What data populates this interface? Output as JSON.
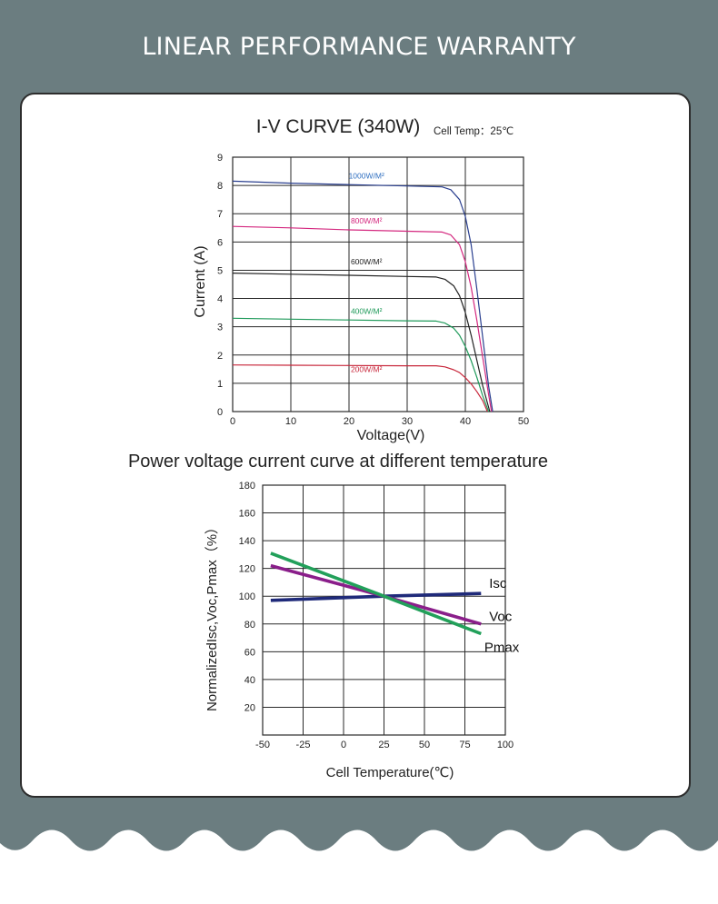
{
  "page": {
    "title": "LINEAR PERFORMANCE WARRANTY",
    "colors": {
      "band": "#6b7d80",
      "card_border": "#2d2d2d",
      "grid": "#2a2a2a"
    }
  },
  "chart_data": [
    {
      "type": "line",
      "title": "I-V CURVE (340W)",
      "subtitle": "Cell Temp：25℃",
      "xlabel": "Voltage(V)",
      "ylabel": "Current (A)",
      "xlim": [
        0,
        50
      ],
      "ylim": [
        0,
        9
      ],
      "x_ticks": [
        0,
        10,
        20,
        30,
        40,
        50
      ],
      "y_ticks": [
        0,
        1,
        2,
        3,
        4,
        5,
        6,
        7,
        8,
        9
      ],
      "grid": true,
      "series": [
        {
          "name": "1000W/M²",
          "color": "#2a3f8f",
          "label_color": "#2f6fc0",
          "label_at": [
            23,
            8.25
          ],
          "points": [
            [
              0,
              8.15
            ],
            [
              10,
              8.08
            ],
            [
              20,
              8.03
            ],
            [
              30,
              7.98
            ],
            [
              36,
              7.95
            ],
            [
              37.5,
              7.85
            ],
            [
              39,
              7.5
            ],
            [
              40,
              6.9
            ],
            [
              41,
              5.9
            ],
            [
              42,
              4.3
            ],
            [
              43,
              2.6
            ],
            [
              44,
              0.9
            ],
            [
              44.7,
              0
            ]
          ]
        },
        {
          "name": "800W/M²",
          "color": "#d4287f",
          "label_color": "#d4287f",
          "label_at": [
            23,
            6.65
          ],
          "points": [
            [
              0,
              6.55
            ],
            [
              10,
              6.5
            ],
            [
              20,
              6.43
            ],
            [
              30,
              6.38
            ],
            [
              36,
              6.35
            ],
            [
              37.5,
              6.25
            ],
            [
              39,
              5.9
            ],
            [
              40,
              5.3
            ],
            [
              41,
              4.4
            ],
            [
              42,
              3.2
            ],
            [
              43,
              1.9
            ],
            [
              44,
              0.6
            ],
            [
              44.5,
              0
            ]
          ]
        },
        {
          "name": "600W/M²",
          "color": "#222222",
          "label_color": "#222222",
          "label_at": [
            23,
            5.2
          ],
          "points": [
            [
              0,
              4.9
            ],
            [
              10,
              4.86
            ],
            [
              20,
              4.82
            ],
            [
              30,
              4.78
            ],
            [
              35,
              4.76
            ],
            [
              36.5,
              4.68
            ],
            [
              38,
              4.45
            ],
            [
              39,
              4.1
            ],
            [
              40,
              3.5
            ],
            [
              41,
              2.7
            ],
            [
              42,
              1.8
            ],
            [
              43,
              0.9
            ],
            [
              44.2,
              0
            ]
          ]
        },
        {
          "name": "400W/M²",
          "color": "#1f9a5a",
          "label_color": "#1f9a5a",
          "label_at": [
            23,
            3.45
          ],
          "points": [
            [
              0,
              3.3
            ],
            [
              10,
              3.27
            ],
            [
              20,
              3.24
            ],
            [
              30,
              3.21
            ],
            [
              35,
              3.2
            ],
            [
              36.5,
              3.13
            ],
            [
              38,
              2.95
            ],
            [
              39,
              2.7
            ],
            [
              40,
              2.3
            ],
            [
              41,
              1.8
            ],
            [
              42,
              1.2
            ],
            [
              43,
              0.55
            ],
            [
              44,
              0
            ]
          ]
        },
        {
          "name": "200W/M²",
          "color": "#c8283c",
          "label_color": "#c8283c",
          "label_at": [
            23,
            1.4
          ],
          "points": [
            [
              0,
              1.65
            ],
            [
              10,
              1.64
            ],
            [
              20,
              1.63
            ],
            [
              30,
              1.62
            ],
            [
              35,
              1.62
            ],
            [
              36.5,
              1.58
            ],
            [
              38,
              1.48
            ],
            [
              39,
              1.38
            ],
            [
              40,
              1.2
            ],
            [
              41,
              0.98
            ],
            [
              42,
              0.7
            ],
            [
              43,
              0.38
            ],
            [
              43.8,
              0
            ]
          ]
        }
      ]
    },
    {
      "type": "line",
      "title": "Power voltage current curve at different temperature",
      "xlabel": "Cell Temperature(℃)",
      "ylabel": "NormalizedIsc,Voc,Pmax（%）",
      "xlim": [
        -50,
        100
      ],
      "ylim": [
        0,
        180
      ],
      "x_ticks": [
        -50,
        -25,
        0,
        25,
        50,
        75,
        100
      ],
      "y_ticks": [
        20,
        40,
        60,
        80,
        100,
        120,
        140,
        160,
        180
      ],
      "grid": true,
      "series": [
        {
          "name": "Isc",
          "color": "#1f2a7a",
          "points": [
            [
              -45,
              97
            ],
            [
              25,
              100
            ],
            [
              85,
              102
            ]
          ],
          "label_at": [
            90,
            106
          ]
        },
        {
          "name": "Voc",
          "color": "#8a1e8a",
          "points": [
            [
              -45,
              122
            ],
            [
              25,
              100
            ],
            [
              85,
              80
            ]
          ],
          "label_at": [
            90,
            82
          ]
        },
        {
          "name": "Pmax",
          "color": "#22a05a",
          "points": [
            [
              -45,
              131
            ],
            [
              25,
              100
            ],
            [
              85,
              73
            ]
          ],
          "label_at": [
            87,
            60
          ]
        }
      ]
    }
  ]
}
